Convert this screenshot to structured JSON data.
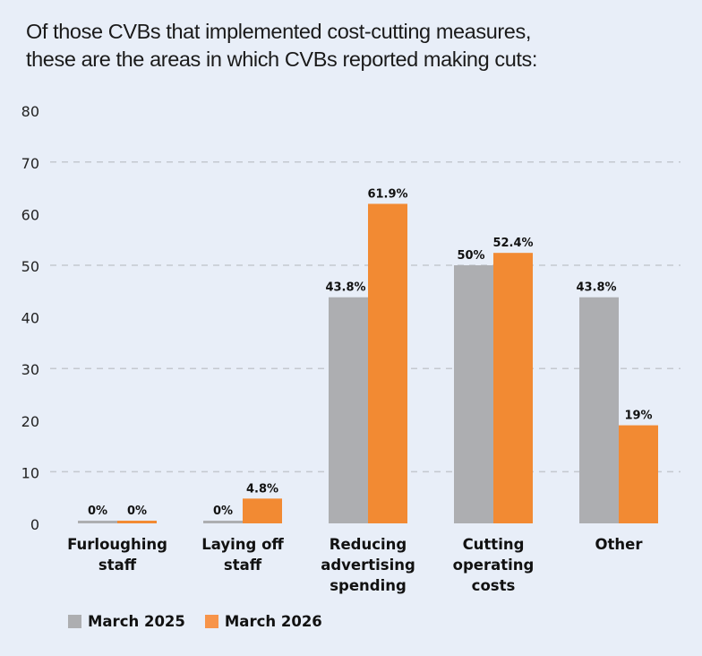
{
  "chart_data": {
    "type": "bar",
    "title": "Of those CVBs that implemented cost-cutting measures, these are the areas in which CVBs reported making cuts:",
    "title_lines": [
      "Of those CVBs that implemented cost-cutting measures,",
      "these are the areas in which CVBs reported making cuts:"
    ],
    "xlabel": "",
    "ylabel": "",
    "ylim": [
      0,
      80
    ],
    "yticks": [
      0,
      10,
      20,
      30,
      40,
      50,
      60,
      70,
      80
    ],
    "gridlines": [
      10,
      30,
      50,
      70
    ],
    "grid": true,
    "legend_position": "bottom-left",
    "categories": [
      [
        "Furloughing",
        "staff"
      ],
      [
        "Laying off",
        "staff"
      ],
      [
        "Reducing",
        "advertising",
        "spending"
      ],
      [
        "Cutting",
        "operating",
        "costs"
      ],
      [
        "Other"
      ]
    ],
    "series": [
      {
        "name": "March 2025",
        "color": "#adaeb1",
        "values": [
          0,
          0,
          43.8,
          50,
          43.8
        ],
        "labels": [
          "0%",
          "0%",
          "43.8%",
          "50%",
          "43.8%"
        ]
      },
      {
        "name": "March 2026",
        "color": "#f28a33",
        "values": [
          0,
          4.8,
          61.9,
          52.4,
          19
        ],
        "labels": [
          "0%",
          "4.8%",
          "61.9%",
          "52.4%",
          "19%"
        ]
      }
    ]
  }
}
